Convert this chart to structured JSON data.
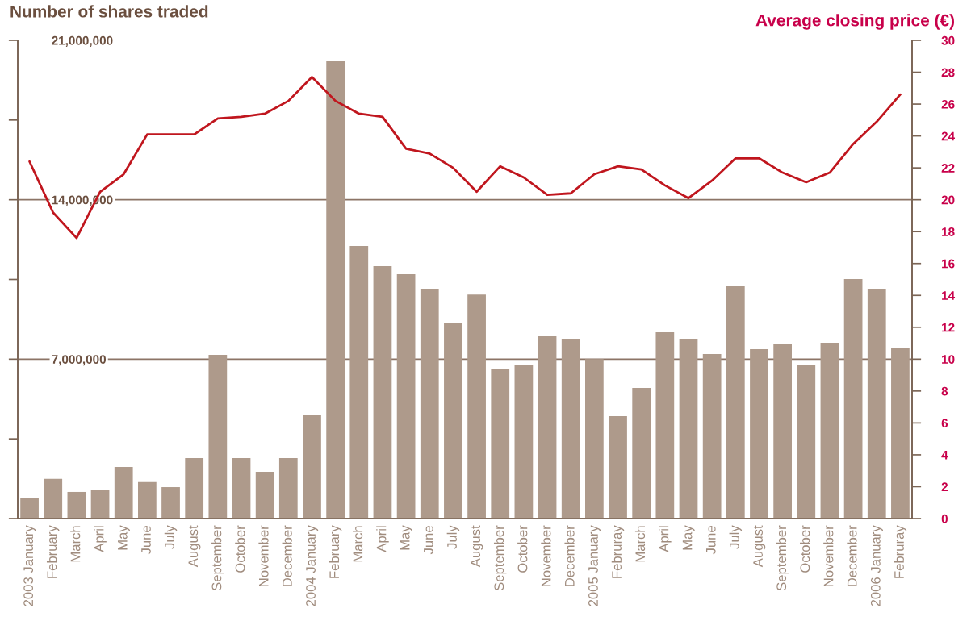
{
  "chart_data": {
    "type": "bar",
    "ylabel": "Number of shares traded",
    "y2label": "Average closing price (€)",
    "categories": [
      "2003 January",
      "February",
      "March",
      "April",
      "May",
      "June",
      "July",
      "August",
      "September",
      "October",
      "November",
      "December",
      "2004 January",
      "February",
      "March",
      "April",
      "May",
      "June",
      "July",
      "August",
      "September",
      "October",
      "November",
      "December",
      "2005 January",
      "Februray",
      "March",
      "April",
      "May",
      "June",
      "July",
      "August",
      "September",
      "October",
      "November",
      "December",
      "2006 January",
      "Februray"
    ],
    "series": [
      {
        "color": "#ae9a8b",
        "values": [
          890000,
          1740000,
          1170000,
          1240000,
          2270000,
          1600000,
          1380000,
          2660000,
          7190000,
          2660000,
          2050000,
          2660000,
          4570000,
          20080000,
          11970000,
          11080000,
          10730000,
          10090000,
          8570000,
          9840000,
          6550000,
          6730000,
          8040000,
          7900000,
          7000000,
          4500000,
          5740000,
          8180000,
          7900000,
          7220000,
          10200000,
          7440000,
          7650000,
          6760000,
          7720000,
          10520000,
          10090000,
          7470000
        ]
      },
      {
        "type": "line",
        "axis": "y2",
        "color": "#c0161e",
        "values": [
          22.4,
          19.2,
          17.6,
          20.5,
          21.6,
          24.1,
          24.1,
          24.1,
          25.1,
          25.2,
          25.4,
          26.2,
          27.7,
          26.2,
          25.4,
          25.2,
          23.2,
          22.9,
          22.0,
          20.5,
          22.1,
          21.4,
          20.3,
          20.4,
          21.6,
          22.1,
          21.9,
          20.9,
          20.1,
          21.2,
          22.6,
          22.6,
          21.7,
          21.1,
          21.7,
          23.5,
          24.9,
          26.6
        ]
      }
    ],
    "ylim": [
      0,
      21000000
    ],
    "yticks": [
      {
        "value": 0,
        "label": null
      },
      {
        "value": 3500000,
        "label": null
      },
      {
        "value": 7000000,
        "label": "7,000,000"
      },
      {
        "value": 10500000,
        "label": null
      },
      {
        "value": 14000000,
        "label": "14,000,000"
      },
      {
        "value": 17500000,
        "label": null
      },
      {
        "value": 21000000,
        "label": "21,000,000"
      }
    ],
    "y2lim": [
      0,
      30
    ],
    "y2ticks": [
      0,
      2,
      4,
      6,
      8,
      10,
      12,
      14,
      16,
      18,
      20,
      22,
      24,
      26,
      28,
      30
    ],
    "ref_lines": [
      {
        "axis": "y",
        "value": 7000000,
        "color": "#8c7466"
      },
      {
        "axis": "y",
        "value": 14000000,
        "color": "#8c7466"
      }
    ],
    "grid": false,
    "legend": false
  }
}
